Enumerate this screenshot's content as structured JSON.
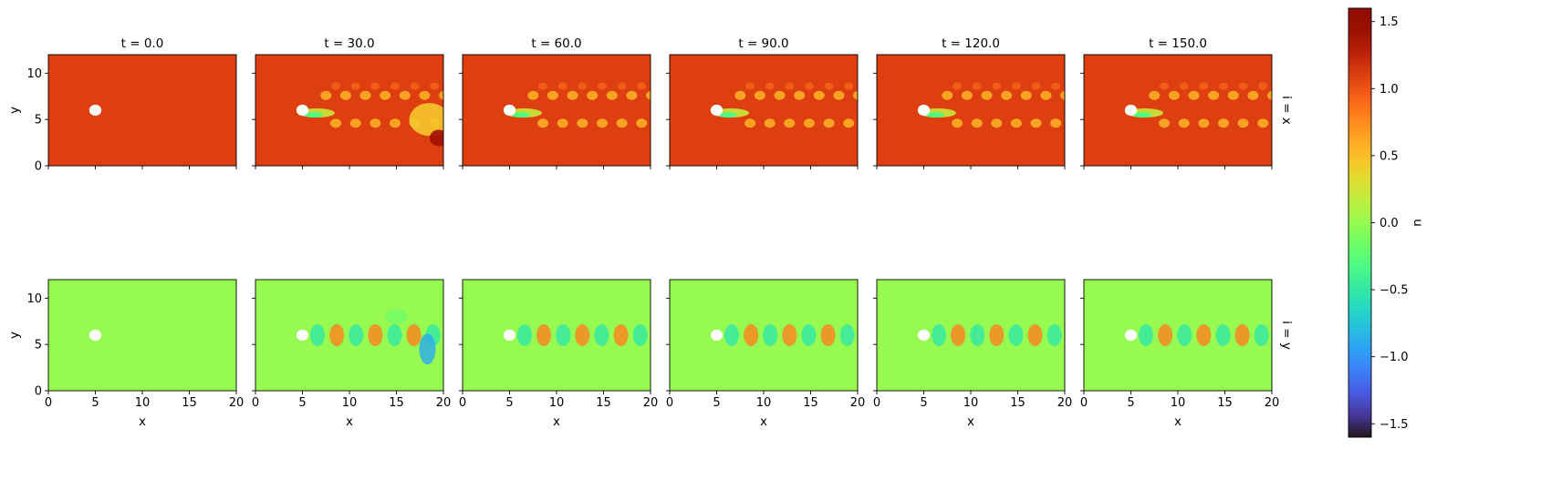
{
  "chart_data": {
    "type": "heatmap",
    "description_free": true,
    "colorbar": {
      "label": "u",
      "colormap": "turbo",
      "vmin": -1.6,
      "vmax": 1.6,
      "ticks": [
        1.5,
        1.0,
        0.5,
        0.0,
        -0.5,
        -1.0,
        -1.5
      ],
      "tick_labels": [
        "1.5",
        "1.0",
        "0.5",
        "0.0",
        "−0.5",
        "−1.0",
        "−1.5"
      ]
    },
    "columns": [
      {
        "title": "t = 0.0",
        "t": 0.0
      },
      {
        "title": "t = 30.0",
        "t": 30.0
      },
      {
        "title": "t = 60.0",
        "t": 60.0
      },
      {
        "title": "t = 90.0",
        "t": 90.0
      },
      {
        "title": "t = 120.0",
        "t": 120.0
      },
      {
        "title": "t = 150.0",
        "t": 150.0
      }
    ],
    "rows": [
      {
        "label": "i = x",
        "component": "x",
        "background_value": 1.1
      },
      {
        "label": "i = y",
        "component": "y",
        "background_value": 0.0
      }
    ],
    "xlabel": "x",
    "ylabel": "y",
    "xlim": [
      0,
      20
    ],
    "ylim": [
      0,
      12
    ],
    "xticks": [
      0,
      5,
      10,
      15,
      20
    ],
    "xtick_labels": [
      "0",
      "5",
      "10",
      "15",
      "20"
    ],
    "yticks": [
      0,
      5,
      10
    ],
    "ytick_labels": [
      "0",
      "5",
      "10"
    ],
    "obstacle": {
      "center_x": 5.0,
      "center_y": 6.0,
      "radius": 0.5
    }
  }
}
